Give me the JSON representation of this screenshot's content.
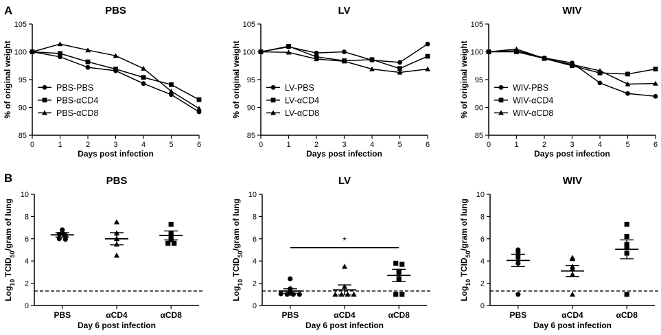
{
  "panel_labels": {
    "a": "A",
    "b": "B"
  },
  "chart_data": [
    {
      "type": "line",
      "title": "PBS",
      "xlabel": "Days post infection",
      "ylabel": "% of original weight",
      "x": [
        0,
        1,
        2,
        3,
        4,
        5,
        6
      ],
      "xlim": [
        0,
        6
      ],
      "ylim": [
        85,
        105
      ],
      "xticks": [
        "0",
        "1",
        "2",
        "3",
        "4",
        "5",
        "6"
      ],
      "yticks": [
        "85",
        "90",
        "95",
        "100",
        "105"
      ],
      "legend": "bottom-left",
      "series": [
        {
          "name": "PBS-PBS",
          "marker": "circle",
          "values": [
            100,
            99.1,
            97.2,
            96.6,
            94.3,
            92.3,
            89.2
          ]
        },
        {
          "name": "PBS-αCD4",
          "marker": "square",
          "values": [
            100,
            99.7,
            98.2,
            96.9,
            95.4,
            94.1,
            91.4
          ]
        },
        {
          "name": "PBS-αCD8",
          "marker": "triangle",
          "values": [
            100,
            101.4,
            100.3,
            99.3,
            97.0,
            92.9,
            89.8
          ]
        }
      ]
    },
    {
      "type": "line",
      "title": "LV",
      "xlabel": "Days post infection",
      "ylabel": "% of original weight",
      "x": [
        0,
        1,
        2,
        3,
        4,
        5,
        6
      ],
      "xlim": [
        0,
        6
      ],
      "ylim": [
        85,
        105
      ],
      "xticks": [
        "0",
        "1",
        "2",
        "3",
        "4",
        "5",
        "6"
      ],
      "yticks": [
        "85",
        "90",
        "95",
        "100",
        "105"
      ],
      "legend": "bottom-left",
      "series": [
        {
          "name": "LV-PBS",
          "marker": "circle",
          "values": [
            100,
            100.9,
            99.8,
            100.0,
            98.5,
            98.1,
            101.4
          ]
        },
        {
          "name": "LV-αCD4",
          "marker": "square",
          "values": [
            100,
            101.0,
            99.1,
            98.4,
            98.6,
            97.0,
            99.2
          ]
        },
        {
          "name": "LV-αCD8",
          "marker": "triangle",
          "values": [
            100,
            99.9,
            98.7,
            98.3,
            96.9,
            96.3,
            96.9
          ]
        }
      ]
    },
    {
      "type": "line",
      "title": "WIV",
      "xlabel": "Days post infection",
      "ylabel": "% of original weight",
      "x": [
        0,
        1,
        2,
        3,
        4,
        5,
        6
      ],
      "xlim": [
        0,
        6
      ],
      "ylim": [
        85,
        105
      ],
      "xticks": [
        "0",
        "1",
        "2",
        "3",
        "4",
        "5",
        "6"
      ],
      "yticks": [
        "85",
        "90",
        "95",
        "100",
        "105"
      ],
      "legend": "bottom-left",
      "series": [
        {
          "name": "WIV-PBS",
          "marker": "circle",
          "values": [
            100,
            100.2,
            98.9,
            98.0,
            94.4,
            92.5,
            92.0
          ]
        },
        {
          "name": "WIV-αCD4",
          "marker": "square",
          "values": [
            100,
            100.0,
            98.8,
            97.5,
            96.2,
            96.0,
            96.9
          ]
        },
        {
          "name": "WIV-αCD8",
          "marker": "triangle",
          "values": [
            100,
            100.5,
            98.8,
            97.7,
            96.6,
            94.2,
            94.3
          ]
        }
      ]
    },
    {
      "type": "scatter",
      "title": "PBS",
      "xlabel": "Day 6 post infection",
      "ylabel": "Log10 TCID50/gram of lung",
      "categories": [
        "PBS",
        "αCD4",
        "αCD8"
      ],
      "ylim": [
        0,
        10
      ],
      "yticks": [
        "0",
        "2",
        "4",
        "6",
        "8",
        "10"
      ],
      "limit_of_detection": 1.3,
      "groups": [
        {
          "name": "PBS",
          "marker": "circle",
          "mean": 6.35,
          "sem": 0.2,
          "points": [
            6.8,
            6.5,
            6.4,
            6.3,
            6.0,
            5.95
          ]
        },
        {
          "name": "αCD4",
          "marker": "triangle",
          "mean": 6.0,
          "sem": 0.55,
          "points": [
            7.5,
            6.5,
            6.0,
            5.5,
            4.5
          ]
        },
        {
          "name": "αCD8",
          "marker": "square",
          "mean": 6.3,
          "sem": 0.4,
          "points": [
            7.3,
            6.5,
            6.2,
            5.9,
            5.6,
            5.6
          ]
        }
      ]
    },
    {
      "type": "scatter",
      "title": "LV",
      "xlabel": "Day 6 post infection",
      "ylabel": "Log10 TCID50/gram of lung",
      "categories": [
        "PBS",
        "αCD4",
        "αCD8"
      ],
      "ylim": [
        0,
        10
      ],
      "yticks": [
        "0",
        "2",
        "4",
        "6",
        "8",
        "10"
      ],
      "limit_of_detection": 1.3,
      "significance": {
        "from": "PBS",
        "to": "αCD8",
        "y": 5.2,
        "label": "*"
      },
      "groups": [
        {
          "name": "PBS",
          "marker": "circle",
          "mean": 1.3,
          "sem": 0.2,
          "points": [
            2.4,
            1.5,
            1.1,
            1.05,
            1.0,
            1.0,
            1.0
          ]
        },
        {
          "name": "αCD4",
          "marker": "triangle",
          "mean": 1.4,
          "sem": 0.45,
          "points": [
            3.5,
            1.7,
            1.0,
            1.0,
            1.0,
            1.0
          ]
        },
        {
          "name": "αCD8",
          "marker": "square",
          "mean": 2.7,
          "sem": 0.55,
          "points": [
            3.8,
            3.7,
            3.0,
            2.4,
            1.0,
            1.0
          ]
        }
      ]
    },
    {
      "type": "scatter",
      "title": "WIV",
      "xlabel": "Day 6 post infection",
      "ylabel": "Log10 TCID50/gram of lung",
      "categories": [
        "PBS",
        "αCD4",
        "αCD8"
      ],
      "ylim": [
        0,
        10
      ],
      "yticks": [
        "0",
        "2",
        "4",
        "6",
        "8",
        "10"
      ],
      "limit_of_detection": 1.3,
      "groups": [
        {
          "name": "PBS",
          "marker": "circle",
          "mean": 4.05,
          "sem": 0.55,
          "points": [
            5.0,
            4.8,
            4.5,
            4.3,
            3.8,
            1.0
          ]
        },
        {
          "name": "αCD4",
          "marker": "triangle",
          "mean": 3.1,
          "sem": 0.5,
          "points": [
            4.3,
            4.2,
            3.5,
            3.3,
            2.8,
            1.0
          ]
        },
        {
          "name": "αCD8",
          "marker": "square",
          "mean": 5.05,
          "sem": 0.85,
          "points": [
            7.3,
            6.2,
            5.5,
            5.3,
            4.7,
            1.0
          ]
        }
      ]
    }
  ]
}
